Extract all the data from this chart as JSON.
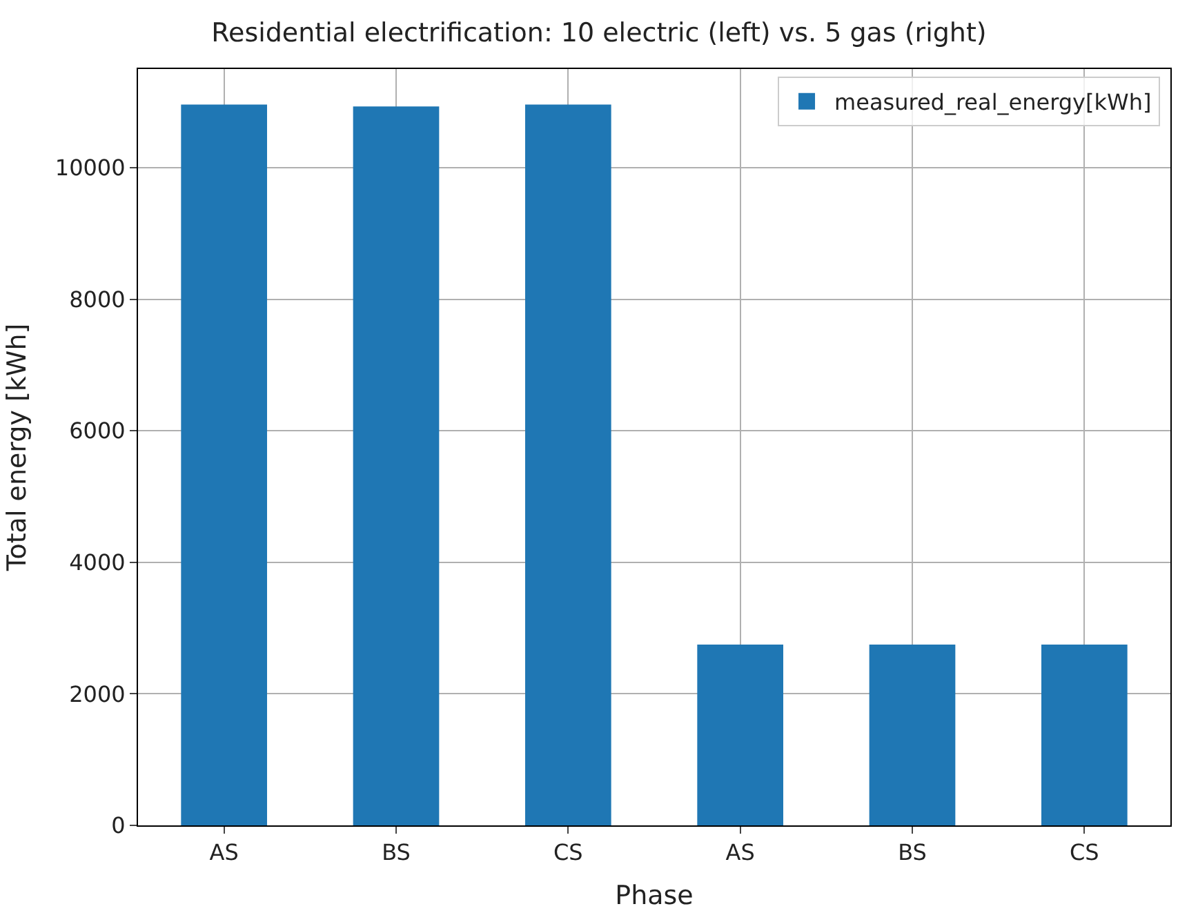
{
  "chart_data": {
    "type": "bar",
    "title": "Residential electrification: 10 electric (left) vs. 5 gas (right)",
    "xlabel": "Phase",
    "ylabel": "Total energy [kWh]",
    "categories": [
      "AS",
      "BS",
      "CS",
      "AS",
      "BS",
      "CS"
    ],
    "series": [
      {
        "name": "measured_real_energy[kWh]",
        "color": "#1f77b4",
        "values": [
          10960,
          10930,
          10960,
          2750,
          2750,
          2750
        ]
      }
    ],
    "ylim": [
      0,
      11500
    ],
    "yticks": [
      0,
      2000,
      4000,
      6000,
      8000,
      10000
    ],
    "grid": true,
    "legend": "top right"
  }
}
